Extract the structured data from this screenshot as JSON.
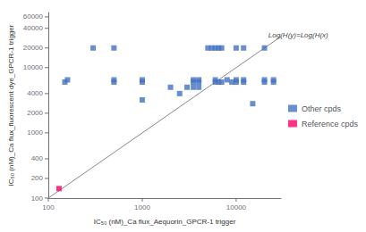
{
  "chart_data": {
    "type": "scatter",
    "xlabel": "IC₅₀ (nM)_Ca flux_Aequorin_GPCR-1 trigger",
    "ylabel": "IC₅₀ (nM)_Ca flux_fluorescent dye_GPCR-1 trigger",
    "log": true,
    "grid": false,
    "legend": "right",
    "xlim": [
      100,
      30000
    ],
    "ylim": [
      100,
      70000
    ],
    "xticks": [
      100,
      1000,
      10000
    ],
    "yticks": [
      100,
      200,
      400,
      1000,
      2000,
      4000,
      10000,
      20000,
      40000,
      60000
    ],
    "series": [
      {
        "name": "Other cpds",
        "type": "scatter",
        "color": "#4472C4",
        "marker": "square",
        "x": [
          150,
          160,
          300,
          500,
          500,
          500,
          1000,
          1000,
          1000,
          2000,
          2500,
          3000,
          3500,
          3500,
          3500,
          4000,
          4000,
          4000,
          5000,
          5500,
          6000,
          6000,
          6000,
          6500,
          6500,
          7000,
          7000,
          8000,
          9000,
          10000,
          10000,
          10000,
          12000,
          12000,
          12000,
          15000,
          20000,
          20000,
          20000,
          25000,
          25000
        ],
        "y": [
          6000,
          6500,
          20000,
          20000,
          6000,
          6500,
          3200,
          6000,
          6500,
          5000,
          4000,
          5000,
          5000,
          6000,
          6500,
          6000,
          6500,
          5000,
          20000,
          20000,
          20000,
          6000,
          6500,
          6000,
          20000,
          6000,
          20000,
          6500,
          6000,
          20000,
          6000,
          6500,
          20000,
          6000,
          6500,
          2800,
          6000,
          6500,
          20000,
          6000,
          6500
        ]
      },
      {
        "name": "Reference cpds",
        "type": "scatter",
        "color": "#FF0066",
        "marker": "square",
        "x": [
          130
        ],
        "y": [
          140
        ]
      },
      {
        "type": "line",
        "color": "#888888",
        "x": [
          100,
          30000
        ],
        "y": [
          100,
          30000
        ]
      }
    ],
    "annotations": [
      {
        "text": "Log(H(y)=Log(H(x)",
        "x": 22000,
        "y": 28000,
        "color": "#444444"
      }
    ]
  }
}
